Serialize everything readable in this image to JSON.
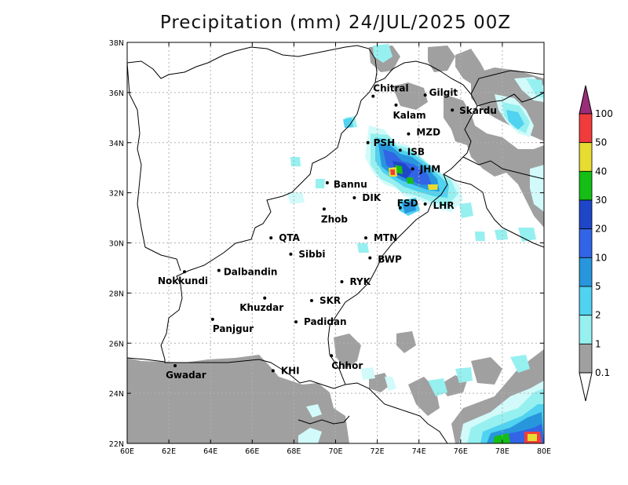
{
  "title": "Precipitation (mm) 24/JUL/2025 00Z",
  "axes": {
    "x_ticks": [
      "60E",
      "62E",
      "64E",
      "66E",
      "68E",
      "70E",
      "72E",
      "74E",
      "76E",
      "78E",
      "80E"
    ],
    "y_ticks": [
      "22N",
      "24N",
      "26N",
      "28N",
      "30N",
      "32N",
      "34N",
      "36N",
      "38N"
    ],
    "lon_range": [
      60,
      80
    ],
    "lat_range": [
      22,
      38
    ]
  },
  "colorbar": {
    "levels": [
      "0.1",
      "1",
      "2",
      "5",
      "10",
      "20",
      "30",
      "40",
      "50",
      "100"
    ],
    "colors": [
      "#a0a0a0",
      "#d2fafa",
      "#96f0f0",
      "#50d2f0",
      "#2896dc",
      "#3264e6",
      "#1e46c8",
      "#14be14",
      "#e6dc32",
      "#f03c3c",
      "#9b2d78"
    ]
  },
  "cities": [
    {
      "name": "Chitral",
      "lon": 71.8,
      "lat": 35.85
    },
    {
      "name": "Gilgit",
      "lon": 74.3,
      "lat": 35.9
    },
    {
      "name": "Kalam",
      "lon": 72.9,
      "lat": 35.5
    },
    {
      "name": "Skardu",
      "lon": 75.6,
      "lat": 35.3
    },
    {
      "name": "MZD",
      "lon": 73.5,
      "lat": 34.35
    },
    {
      "name": "PSH",
      "lon": 71.55,
      "lat": 34.0
    },
    {
      "name": "ISB",
      "lon": 73.1,
      "lat": 33.7
    },
    {
      "name": "JHM",
      "lon": 73.7,
      "lat": 32.95
    },
    {
      "name": "Bannu",
      "lon": 69.6,
      "lat": 32.4
    },
    {
      "name": "DIK",
      "lon": 70.9,
      "lat": 31.8
    },
    {
      "name": "FSD",
      "lon": 73.1,
      "lat": 31.4
    },
    {
      "name": "LHR",
      "lon": 74.3,
      "lat": 31.55
    },
    {
      "name": "Zhob",
      "lon": 69.45,
      "lat": 31.35
    },
    {
      "name": "QTA",
      "lon": 66.9,
      "lat": 30.2
    },
    {
      "name": "MTN",
      "lon": 71.45,
      "lat": 30.2
    },
    {
      "name": "Sibbi",
      "lon": 67.85,
      "lat": 29.55
    },
    {
      "name": "BWP",
      "lon": 71.65,
      "lat": 29.4
    },
    {
      "name": "Nokkundi",
      "lon": 62.75,
      "lat": 28.85
    },
    {
      "name": "Dalbandin",
      "lon": 64.4,
      "lat": 28.9
    },
    {
      "name": "RYK",
      "lon": 70.3,
      "lat": 28.45
    },
    {
      "name": "Khuzdar",
      "lon": 66.6,
      "lat": 27.8
    },
    {
      "name": "SKR",
      "lon": 68.85,
      "lat": 27.7
    },
    {
      "name": "Panjgur",
      "lon": 64.1,
      "lat": 26.95
    },
    {
      "name": "Padidan",
      "lon": 68.1,
      "lat": 26.85
    },
    {
      "name": "Chhor",
      "lon": 69.8,
      "lat": 25.5
    },
    {
      "name": "KHI",
      "lon": 67.0,
      "lat": 24.9
    },
    {
      "name": "Gwadar",
      "lon": 62.3,
      "lat": 25.1
    }
  ]
}
